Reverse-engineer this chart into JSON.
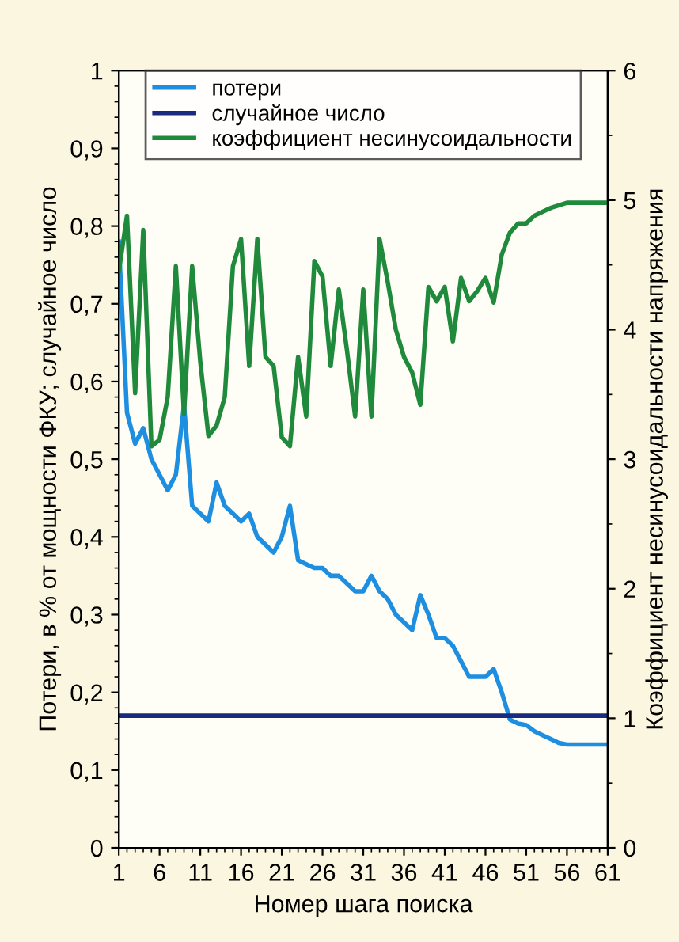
{
  "chart_data": {
    "type": "line",
    "xlabel": "Номер шага поиска",
    "ylabel": "Потери, в % от мощности ФКУ; случайное число",
    "y2label": "Коэффициент несинусоидальности напряжения",
    "x": [
      1,
      2,
      3,
      4,
      5,
      6,
      7,
      8,
      9,
      10,
      11,
      12,
      13,
      14,
      15,
      16,
      17,
      18,
      19,
      20,
      21,
      22,
      23,
      24,
      25,
      26,
      27,
      28,
      29,
      30,
      31,
      32,
      33,
      34,
      35,
      36,
      37,
      38,
      39,
      40,
      41,
      42,
      43,
      44,
      45,
      46,
      47,
      48,
      49,
      50,
      51,
      52,
      53,
      54,
      55,
      56,
      57,
      58,
      59,
      60,
      61
    ],
    "series": [
      {
        "name": "потери",
        "color": "#1e8fe0",
        "values": [
          0.78,
          0.56,
          0.52,
          0.54,
          0.5,
          0.48,
          0.46,
          0.48,
          0.57,
          0.44,
          0.43,
          0.42,
          0.47,
          0.44,
          0.43,
          0.42,
          0.43,
          0.4,
          0.39,
          0.38,
          0.4,
          0.44,
          0.37,
          0.365,
          0.36,
          0.36,
          0.35,
          0.35,
          0.34,
          0.33,
          0.33,
          0.35,
          0.33,
          0.32,
          0.3,
          0.29,
          0.28,
          0.325,
          0.3,
          0.27,
          0.27,
          0.26,
          0.24,
          0.22,
          0.22,
          0.22,
          0.23,
          0.2,
          0.165,
          0.16,
          0.158,
          0.15,
          0.145,
          0.14,
          0.135,
          0.133,
          0.133,
          0.133,
          0.133,
          0.133,
          0.133
        ]
      },
      {
        "name": "случайное число",
        "color": "#1a2a80",
        "values": [
          0.17,
          0.17,
          0.17,
          0.17,
          0.17,
          0.17,
          0.17,
          0.17,
          0.17,
          0.17,
          0.17,
          0.17,
          0.17,
          0.17,
          0.17,
          0.17,
          0.17,
          0.17,
          0.17,
          0.17,
          0.17,
          0.17,
          0.17,
          0.17,
          0.17,
          0.17,
          0.17,
          0.17,
          0.17,
          0.17,
          0.17,
          0.17,
          0.17,
          0.17,
          0.17,
          0.17,
          0.17,
          0.17,
          0.17,
          0.17,
          0.17,
          0.17,
          0.17,
          0.17,
          0.17,
          0.17,
          0.17,
          0.17,
          0.17,
          0.17,
          0.17,
          0.17,
          0.17,
          0.17,
          0.17,
          0.17,
          0.17,
          0.17,
          0.17,
          0.17,
          0.17
        ]
      },
      {
        "name": "коэффициент несинусоидальности",
        "color": "#1f8a3c",
        "axis": "y2",
        "values": [
          4.45,
          4.88,
          3.51,
          4.77,
          3.1,
          3.15,
          3.48,
          4.49,
          3.35,
          4.49,
          3.75,
          3.18,
          3.26,
          3.48,
          4.49,
          4.7,
          3.72,
          4.7,
          3.79,
          3.72,
          3.17,
          3.1,
          3.79,
          3.33,
          4.53,
          4.41,
          3.72,
          4.31,
          3.84,
          3.33,
          4.31,
          3.33,
          4.7,
          4.37,
          4.0,
          3.79,
          3.67,
          3.42,
          4.33,
          4.22,
          4.33,
          3.91,
          4.4,
          4.22,
          4.3,
          4.4,
          4.21,
          4.58,
          4.75,
          4.82,
          4.82,
          4.88,
          4.91,
          4.94,
          4.96,
          4.98,
          4.98,
          4.98,
          4.98,
          4.98,
          4.98
        ]
      }
    ],
    "xlim": [
      1,
      61
    ],
    "xticks": [
      1,
      6,
      11,
      16,
      21,
      26,
      31,
      36,
      41,
      46,
      51,
      56,
      61
    ],
    "ylim": [
      0,
      1
    ],
    "yticks": [
      0,
      {
        "value": 0.1,
        "label": "0,1"
      },
      {
        "value": 0.2,
        "label": "0,2"
      },
      {
        "value": 0.3,
        "label": "0,3"
      },
      {
        "value": 0.4,
        "label": "0,4"
      },
      {
        "value": 0.5,
        "label": "0,5"
      },
      {
        "value": 0.6,
        "label": "0,6"
      },
      {
        "value": 0.7,
        "label": "0,7"
      },
      {
        "value": 0.8,
        "label": "0,8"
      },
      {
        "value": 0.9,
        "label": "0,9"
      },
      1
    ],
    "y2lim": [
      0,
      6
    ],
    "y2ticks": [
      0,
      1,
      2,
      3,
      4,
      5,
      6
    ],
    "legend": "top",
    "grid": false,
    "marker": "none",
    "line_style": "solid"
  }
}
